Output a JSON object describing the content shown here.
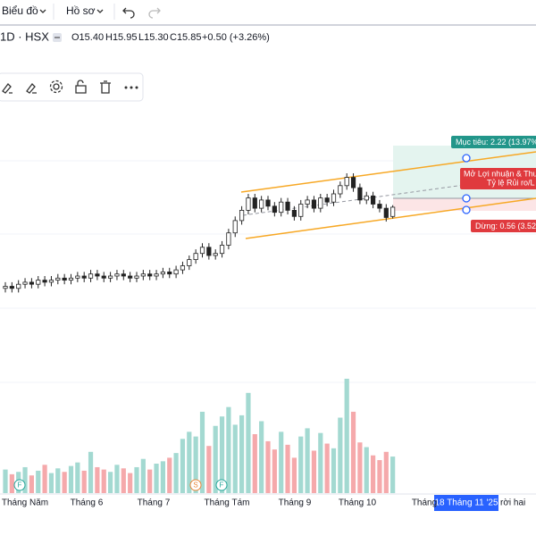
{
  "toolbar": {
    "chart_menu": "Biểu đồ",
    "profile_menu": "Hồ sơ"
  },
  "header": {
    "symbol": "1D · HSX",
    "ohlc": [
      "O15.40",
      "H15.95",
      "L15.30",
      "C15.85",
      "+0.50 (+3.26%)"
    ]
  },
  "position_tool": {
    "target": "Mục tiêu: 2.22 (13.97%)",
    "pnl_line1": "Mở Lợi nhuận & Thu",
    "pnl_line2": "Tỷ lệ Rủi ro/L",
    "stop": "Dừng: 0.56 (3.52%)"
  },
  "events": [
    "F",
    "S",
    "F"
  ],
  "chart_data": {
    "type": "candlestick",
    "open": [
      11.9,
      12.0,
      11.9,
      12.1,
      12.2,
      12.1,
      12.3,
      12.2,
      12.3,
      12.4,
      12.3,
      12.4,
      12.5,
      12.4,
      12.6,
      12.5,
      12.4,
      12.5,
      12.6,
      12.5,
      12.4,
      12.5,
      12.6,
      12.5,
      12.6,
      12.7,
      12.6,
      12.8,
      13.0,
      13.3,
      13.6,
      13.9,
      13.5,
      13.6,
      14.0,
      14.6,
      15.2,
      15.7,
      16.3,
      15.8,
      16.2,
      15.9,
      15.6,
      16.1,
      15.7,
      15.4,
      16.0,
      16.2,
      15.8,
      16.3,
      16.1,
      16.5,
      16.9,
      17.3,
      16.8,
      16.2,
      16.4,
      16.0,
      15.8,
      15.4
    ],
    "high": [
      12.2,
      12.2,
      12.3,
      12.4,
      12.4,
      12.5,
      12.5,
      12.5,
      12.6,
      12.6,
      12.6,
      12.7,
      12.7,
      12.8,
      12.8,
      12.7,
      12.7,
      12.8,
      12.8,
      12.7,
      12.7,
      12.8,
      12.8,
      12.8,
      12.9,
      12.9,
      13.0,
      13.2,
      13.5,
      13.8,
      14.1,
      14.1,
      13.8,
      14.2,
      14.8,
      15.4,
      15.9,
      16.5,
      16.5,
      16.4,
      16.4,
      16.1,
      16.3,
      16.3,
      15.9,
      16.2,
      16.4,
      16.4,
      16.5,
      16.5,
      16.7,
      17.1,
      17.5,
      17.5,
      17.0,
      16.6,
      16.6,
      16.2,
      16.0,
      15.95
    ],
    "low": [
      11.7,
      11.7,
      11.7,
      11.9,
      11.9,
      11.9,
      12.0,
      12.0,
      12.1,
      12.1,
      12.1,
      12.2,
      12.2,
      12.2,
      12.3,
      12.2,
      12.2,
      12.3,
      12.3,
      12.2,
      12.2,
      12.3,
      12.3,
      12.3,
      12.4,
      12.4,
      12.4,
      12.6,
      12.8,
      13.1,
      13.4,
      13.3,
      13.3,
      13.4,
      13.8,
      14.4,
      15.0,
      15.5,
      15.6,
      15.6,
      15.7,
      15.4,
      15.4,
      15.5,
      15.2,
      15.2,
      15.8,
      15.6,
      15.6,
      15.9,
      15.9,
      16.3,
      16.7,
      16.6,
      16.0,
      16.0,
      15.8,
      15.6,
      15.15,
      15.3
    ],
    "close": [
      12.0,
      11.9,
      12.1,
      12.2,
      12.1,
      12.3,
      12.2,
      12.3,
      12.4,
      12.3,
      12.4,
      12.5,
      12.4,
      12.6,
      12.5,
      12.4,
      12.5,
      12.6,
      12.5,
      12.4,
      12.5,
      12.6,
      12.5,
      12.6,
      12.7,
      12.6,
      12.8,
      13.0,
      13.3,
      13.6,
      13.9,
      13.5,
      13.6,
      14.0,
      14.6,
      15.2,
      15.7,
      16.3,
      15.8,
      16.2,
      15.9,
      15.6,
      16.1,
      15.7,
      15.4,
      16.0,
      16.2,
      15.8,
      16.3,
      16.1,
      16.5,
      16.9,
      17.3,
      16.8,
      16.2,
      16.4,
      16.0,
      15.8,
      15.35,
      15.85
    ],
    "volume": [
      2.0,
      1.6,
      1.8,
      2.2,
      1.5,
      1.9,
      2.4,
      1.7,
      2.1,
      1.8,
      2.3,
      2.6,
      1.9,
      3.5,
      2.2,
      2.0,
      1.8,
      2.4,
      2.1,
      1.7,
      2.2,
      2.9,
      2.0,
      2.5,
      2.7,
      3.0,
      3.4,
      4.6,
      5.2,
      4.8,
      6.9,
      4.0,
      5.7,
      6.5,
      7.3,
      5.8,
      6.6,
      8.5,
      5.0,
      6.1,
      4.4,
      3.7,
      5.2,
      4.1,
      3.0,
      4.8,
      5.5,
      3.6,
      5.1,
      4.2,
      3.8,
      6.4,
      9.7,
      6.9,
      4.3,
      3.9,
      3.2,
      2.8,
      3.5,
      3.1
    ],
    "ylim": [
      9,
      20
    ],
    "vlim": [
      0,
      10
    ],
    "candle_color": "#222222",
    "volume_up_color": "#a3d9d1",
    "volume_down_color": "#f5a9ab",
    "x_labels": [
      "Tháng Năm",
      "Tháng 6",
      "Tháng 7",
      "Tháng Tám",
      "Tháng 9",
      "Tháng 10",
      "Tháng"
    ],
    "cursor_date": "18 Tháng 11 '25",
    "cursor_suffix": "rời hai"
  }
}
